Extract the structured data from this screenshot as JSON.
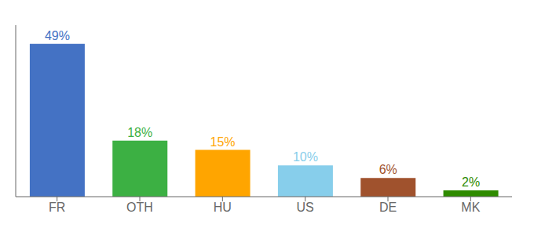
{
  "chart_data": {
    "type": "bar",
    "categories": [
      "FR",
      "OTH",
      "HU",
      "US",
      "DE",
      "MK"
    ],
    "values": [
      49,
      18,
      15,
      10,
      6,
      2
    ],
    "value_labels": [
      "49%",
      "18%",
      "15%",
      "10%",
      "6%",
      "2%"
    ],
    "colors": [
      "#4472C4",
      "#3CB043",
      "#FFA500",
      "#87CEEB",
      "#A0522D",
      "#2E8B00"
    ],
    "ylim": [
      0,
      55
    ],
    "data_labels": true,
    "tick_labels": "x",
    "grid": false
  }
}
